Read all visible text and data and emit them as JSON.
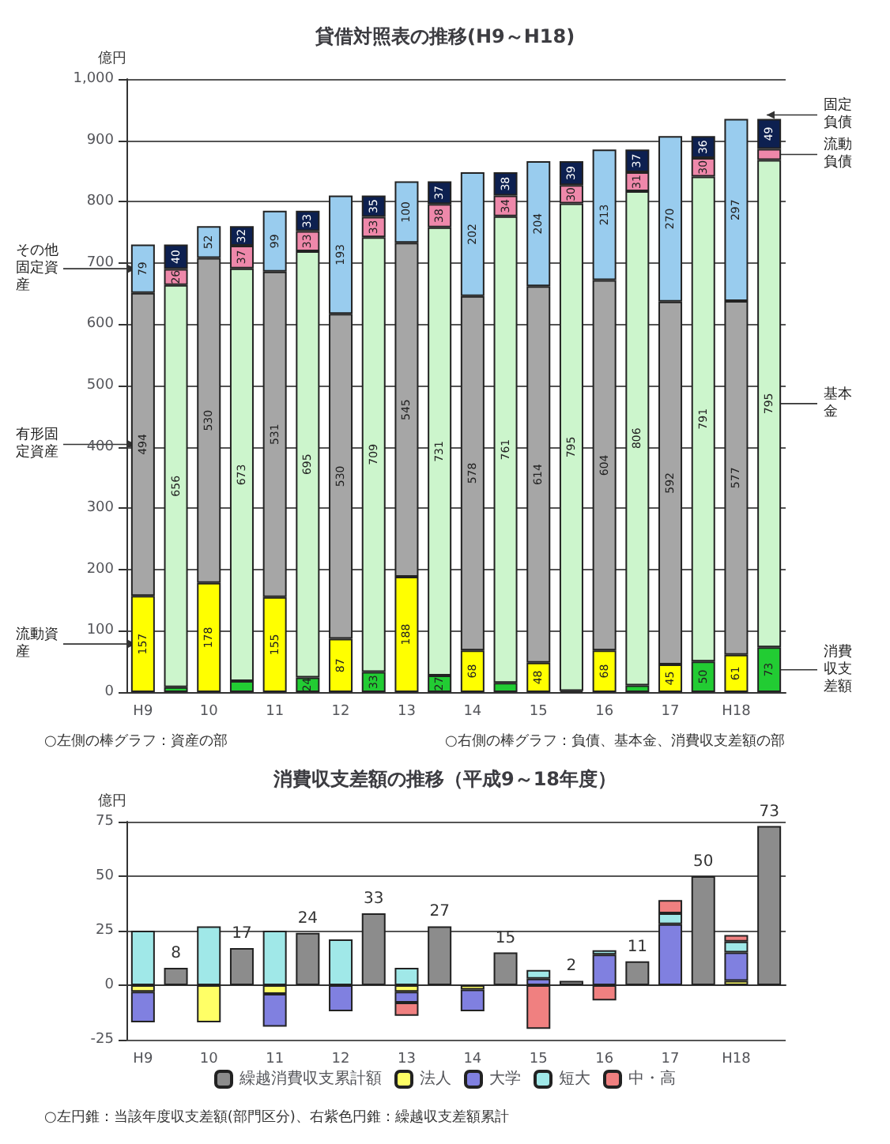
{
  "chart_data": [
    {
      "type": "bar",
      "title": "貸借対照表の推移(H9～H18)",
      "ylabel": "億円",
      "stacked": true,
      "legend": false,
      "grid": "y",
      "categories": [
        "H9",
        null,
        "10",
        null,
        "11",
        null,
        "12",
        null,
        "13",
        null,
        "14",
        null,
        "15",
        null,
        "16",
        null,
        "17",
        null,
        "H18",
        null
      ],
      "ylim": [
        0,
        1000
      ],
      "yticks": [
        0,
        100,
        200,
        300,
        400,
        500,
        600,
        700,
        800,
        900,
        {
          "value": 1000,
          "label": "1,000"
        }
      ],
      "series": [
        {
          "name": "流動資産",
          "color": "#ffff00",
          "values": [
            157,
            null,
            178,
            null,
            155,
            null,
            87,
            null,
            188,
            null,
            68,
            null,
            48,
            null,
            68,
            null,
            45,
            null,
            61,
            null
          ],
          "value_labels": [
            "157",
            null,
            "178",
            null,
            "155",
            null,
            "87",
            null,
            "188",
            null,
            "68",
            null,
            "48",
            null,
            "68",
            null,
            "45",
            null,
            "61",
            null
          ]
        },
        {
          "name": "有形固定資産",
          "color": "#a6a6a6",
          "values": [
            494,
            null,
            530,
            null,
            531,
            null,
            530,
            null,
            545,
            null,
            578,
            null,
            614,
            null,
            604,
            null,
            592,
            null,
            577,
            null
          ],
          "value_labels": [
            "494",
            null,
            "530",
            null,
            "531",
            null,
            "530",
            null,
            "545",
            null,
            "578",
            null,
            "614",
            null,
            "604",
            null,
            "592",
            null,
            "577",
            null
          ]
        },
        {
          "name": "その他固定資産",
          "color": "#99ccee",
          "values": [
            79,
            null,
            52,
            null,
            99,
            null,
            193,
            null,
            100,
            null,
            202,
            null,
            204,
            null,
            213,
            null,
            270,
            null,
            297,
            null
          ],
          "value_labels": [
            "79",
            null,
            "52",
            null,
            "99",
            null,
            "193",
            null,
            "100",
            null,
            "202",
            null,
            "204",
            null,
            "213",
            null,
            "270",
            null,
            "297",
            null
          ]
        },
        {
          "name": "消費収支差額",
          "color": "#22cc33",
          "values": [
            null,
            8,
            null,
            18,
            null,
            24,
            null,
            33,
            null,
            27,
            null,
            15,
            null,
            2,
            null,
            11,
            null,
            50,
            null,
            73
          ],
          "value_labels": [
            null,
            null,
            null,
            null,
            null,
            "24",
            null,
            "33",
            null,
            "27",
            null,
            null,
            null,
            null,
            null,
            null,
            null,
            "50",
            null,
            "73"
          ]
        },
        {
          "name": "基本金",
          "color": "#ccf5cc",
          "values": [
            null,
            656,
            null,
            673,
            null,
            695,
            null,
            709,
            null,
            731,
            null,
            761,
            null,
            795,
            null,
            806,
            null,
            791,
            null,
            795
          ],
          "value_labels": [
            null,
            "656",
            null,
            "673",
            null,
            "695",
            null,
            "709",
            null,
            "731",
            null,
            "761",
            null,
            "795",
            null,
            "806",
            null,
            "791",
            null,
            "795"
          ]
        },
        {
          "name": "流動負債",
          "color": "#ee88aa",
          "values": [
            null,
            26,
            null,
            37,
            null,
            33,
            null,
            33,
            null,
            38,
            null,
            34,
            null,
            30,
            null,
            31,
            null,
            30,
            null,
            18
          ],
          "value_labels": [
            null,
            "26",
            null,
            "37",
            null,
            "33",
            null,
            "33",
            null,
            "38",
            null,
            "34",
            null,
            "30",
            null,
            "31",
            null,
            "30",
            null,
            null
          ]
        },
        {
          "name": "固定負債",
          "color": "#0d2050",
          "values": [
            null,
            40,
            null,
            32,
            null,
            33,
            null,
            35,
            null,
            37,
            null,
            38,
            null,
            39,
            null,
            37,
            null,
            36,
            null,
            49
          ],
          "value_labels": [
            null,
            "40",
            null,
            "32",
            null,
            "33",
            null,
            "35",
            null,
            "37",
            null,
            "38",
            null,
            "39",
            null,
            "37",
            null,
            "36",
            null,
            "49"
          ]
        }
      ],
      "annotations": [
        "○左側の棒グラフ：資産の部",
        "○右側の棒グラフ：負債、基本金、消費収支差額の部"
      ]
    },
    {
      "type": "bar",
      "title": "消費収支差額の推移（平成9～18年度）",
      "ylabel": "億円",
      "stacked": true,
      "legend": "bottom",
      "grid": "y",
      "categories": [
        "H9",
        null,
        "10",
        null,
        "11",
        null,
        "12",
        null,
        "13",
        null,
        "14",
        null,
        "15",
        null,
        "16",
        null,
        "17",
        null,
        "H18",
        null
      ],
      "ylim": [
        -25,
        75
      ],
      "yticks": [
        -25,
        0,
        25,
        50,
        75
      ],
      "series": [
        {
          "name": "繰越消費収支累計額",
          "color": "#8c8c8c",
          "values": [
            null,
            8,
            null,
            17,
            null,
            24,
            null,
            33,
            null,
            27,
            null,
            15,
            null,
            2,
            null,
            11,
            null,
            50,
            null,
            73
          ],
          "value_labels": [
            null,
            "8",
            null,
            "17",
            null,
            "24",
            null,
            "33",
            null,
            "27",
            null,
            "15",
            null,
            "2",
            null,
            "11",
            null,
            "50",
            null,
            "73"
          ]
        },
        {
          "name": "法人",
          "color": "#ffff66",
          "values": [
            -3,
            null,
            -17,
            null,
            -4,
            null,
            null,
            null,
            -3,
            null,
            -2,
            null,
            null,
            null,
            null,
            null,
            null,
            null,
            2,
            null
          ]
        },
        {
          "name": "大学",
          "color": "#8080e0",
          "values": [
            -14,
            null,
            null,
            null,
            -15,
            null,
            -12,
            null,
            -5,
            null,
            -10,
            null,
            3,
            null,
            14,
            null,
            28,
            null,
            13,
            null
          ]
        },
        {
          "name": "短大",
          "color": "#a0e8e8",
          "values": [
            25,
            null,
            27,
            null,
            25,
            null,
            21,
            null,
            8,
            null,
            null,
            null,
            4,
            null,
            2,
            null,
            5,
            null,
            5,
            null
          ]
        },
        {
          "name": "中・高",
          "color": "#f08080",
          "values": [
            null,
            null,
            null,
            null,
            null,
            null,
            null,
            null,
            -6,
            null,
            null,
            null,
            -20,
            null,
            -7,
            null,
            6,
            null,
            3,
            null
          ]
        }
      ],
      "annotations": [
        "○左円錐：当該年度収支差額(部門区分)、右紫色円錐：繰越収支差額累計"
      ]
    }
  ]
}
